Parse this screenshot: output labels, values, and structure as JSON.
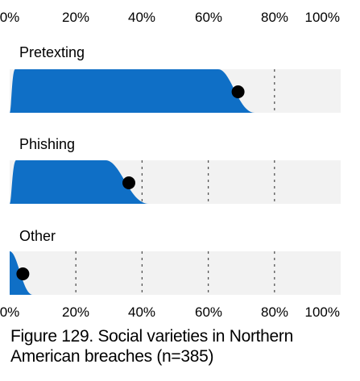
{
  "caption": "Figure 129. Social varieties in Northern American breaches (n=385)",
  "colors": {
    "fill": "#0f6fc6",
    "track": "#f2f2f2",
    "point": "#000000",
    "gridline": "#555555"
  },
  "chart_data": {
    "type": "slab-interval",
    "title": "",
    "xlabel": "",
    "ylabel": "",
    "xlim": [
      0,
      1
    ],
    "x_ticks": [
      "0%",
      "20%",
      "40%",
      "60%",
      "80%",
      "100%"
    ],
    "grid": true,
    "legend": "none",
    "categories": [
      "Pretexting",
      "Phishing",
      "Other"
    ],
    "series": [
      {
        "category": "Pretexting",
        "point_estimate": 0.69,
        "distribution_low": 0.63,
        "distribution_high": 0.74
      },
      {
        "category": "Phishing",
        "point_estimate": 0.36,
        "distribution_low": 0.29,
        "distribution_high": 0.42
      },
      {
        "category": "Other",
        "point_estimate": 0.04,
        "distribution_low": 0.0,
        "distribution_high": 0.07
      }
    ]
  }
}
